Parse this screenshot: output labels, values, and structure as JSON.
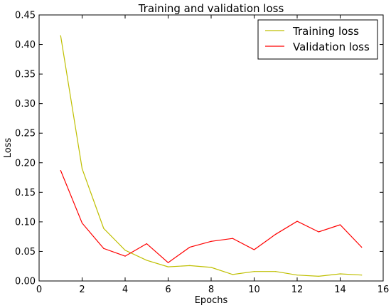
{
  "chart_data": {
    "type": "line",
    "title": "Training and validation loss",
    "xlabel": "Epochs",
    "ylabel": "Loss",
    "xlim": [
      0,
      16
    ],
    "ylim": [
      0,
      0.45
    ],
    "xticks": [
      "0",
      "2",
      "4",
      "6",
      "8",
      "10",
      "12",
      "14",
      "16"
    ],
    "yticks": [
      "0.00",
      "0.05",
      "0.10",
      "0.15",
      "0.20",
      "0.25",
      "0.30",
      "0.35",
      "0.40",
      "0.45"
    ],
    "grid": false,
    "legend_position": "top-right",
    "x": [
      1,
      2,
      3,
      4,
      5,
      6,
      7,
      8,
      9,
      10,
      11,
      12,
      13,
      14,
      15
    ],
    "series": [
      {
        "name": "Training loss",
        "color": "#bfbf00",
        "values": [
          0.415,
          0.19,
          0.089,
          0.052,
          0.035,
          0.024,
          0.026,
          0.023,
          0.011,
          0.016,
          0.016,
          0.01,
          0.008,
          0.012,
          0.01
        ]
      },
      {
        "name": "Validation loss",
        "color": "#ff0000",
        "values": [
          0.187,
          0.098,
          0.055,
          0.042,
          0.063,
          0.031,
          0.057,
          0.067,
          0.072,
          0.053,
          0.079,
          0.101,
          0.083,
          0.095,
          0.057
        ]
      }
    ]
  }
}
